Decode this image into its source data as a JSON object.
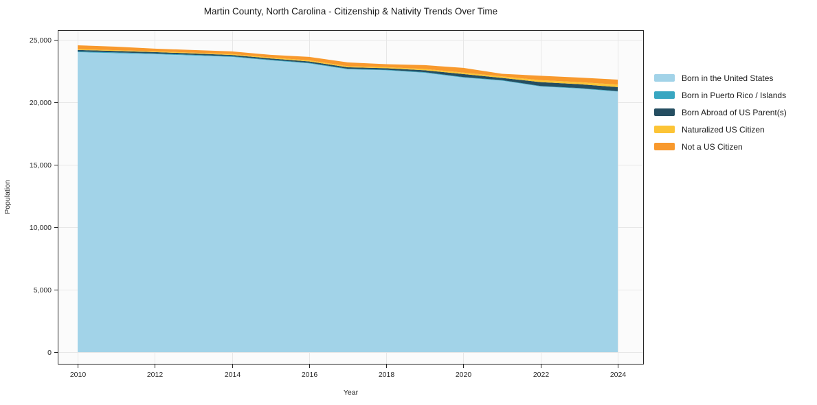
{
  "chart": {
    "title": "Martin County, North Carolina - Citizenship & Nativity Trends Over Time",
    "xlabel": "Year",
    "ylabel": "Population"
  },
  "chart_data": {
    "type": "area",
    "stacked": true,
    "title": "Martin County, North Carolina - Citizenship & Nativity Trends Over Time",
    "xlabel": "Year",
    "ylabel": "Population",
    "x": [
      2010,
      2011,
      2012,
      2013,
      2014,
      2015,
      2016,
      2017,
      2018,
      2019,
      2020,
      2021,
      2022,
      2023,
      2024
    ],
    "series": [
      {
        "name": "Born in the United States",
        "color": "#a2d3e8",
        "values": [
          24010,
          23930,
          23850,
          23740,
          23630,
          23355,
          23110,
          22640,
          22560,
          22365,
          21980,
          21730,
          21265,
          21100,
          20855
        ]
      },
      {
        "name": "Born in Puerto Rico / Islands",
        "color": "#38a6c1",
        "values": [
          60,
          60,
          55,
          55,
          50,
          50,
          50,
          45,
          45,
          45,
          40,
          40,
          40,
          40,
          40
        ]
      },
      {
        "name": "Born Abroad of US Parent(s)",
        "color": "#254e61",
        "values": [
          115,
          115,
          110,
          110,
          105,
          105,
          110,
          115,
          120,
          150,
          240,
          180,
          310,
          310,
          320
        ]
      },
      {
        "name": "Naturalized US Citizen",
        "color": "#fcc436",
        "values": [
          65,
          65,
          70,
          70,
          75,
          80,
          85,
          90,
          95,
          105,
          120,
          120,
          155,
          165,
          200
        ]
      },
      {
        "name": "Not a US Citizen",
        "color": "#f8992d",
        "values": [
          310,
          280,
          205,
          205,
          210,
          205,
          275,
          300,
          230,
          305,
          370,
          210,
          350,
          365,
          400
        ]
      }
    ],
    "xticks": [
      2010,
      2012,
      2014,
      2016,
      2018,
      2020,
      2022,
      2024
    ],
    "ytick_values": [
      0,
      5000,
      10000,
      15000,
      20000,
      25000
    ],
    "ytick_labels": [
      "0",
      "5,000",
      "10,000",
      "15,000",
      "20,000",
      "25,000"
    ],
    "ylim": [
      0,
      25000
    ],
    "grid": true,
    "legend_position": "right",
    "style_colors": {
      "grid": "#e7e7e7",
      "spine": "#262626",
      "plot_bg": "#fbfbfb"
    }
  }
}
